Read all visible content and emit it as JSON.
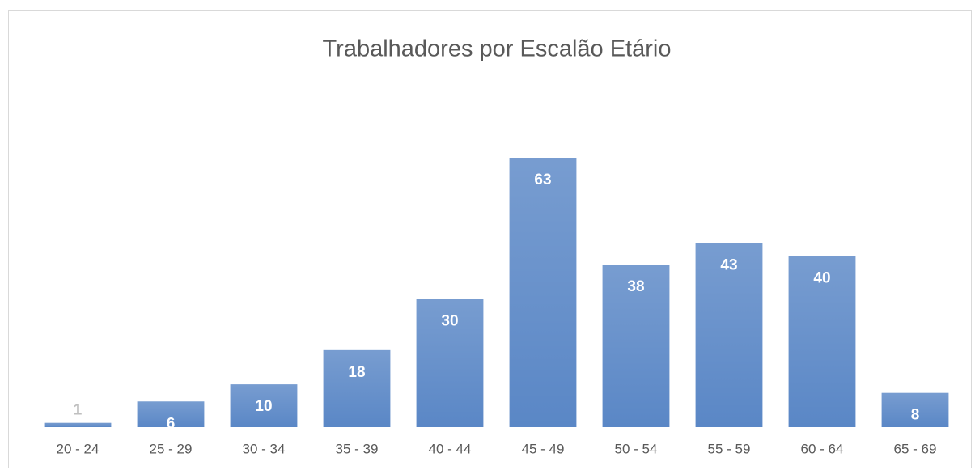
{
  "chart_data": {
    "type": "bar",
    "title": "Trabalhadores por Escalão Etário",
    "categories": [
      "20 - 24",
      "25 - 29",
      "30 - 34",
      "35 - 39",
      "40 - 44",
      "45 - 49",
      "50 - 54",
      "55 - 59",
      "60 - 64",
      "65 - 69"
    ],
    "values": [
      1,
      6,
      10,
      18,
      30,
      63,
      38,
      43,
      40,
      8
    ],
    "color": "#5a87c6",
    "ylim": [
      0,
      70
    ]
  }
}
